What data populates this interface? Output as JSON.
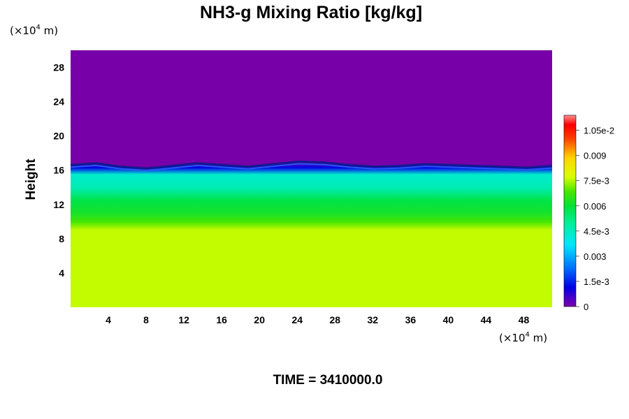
{
  "chart_data": {
    "type": "heatmap",
    "title": "NH3-g Mixing Ratio [kg/kg]",
    "ylabel": "Height",
    "x_unit_prefix": "(×10",
    "x_unit_exp": "4",
    "x_unit_suffix": " m)",
    "y_unit_prefix": "(×10",
    "y_unit_exp": "4",
    "y_unit_suffix": " m)",
    "xlim": [
      0,
      51
    ],
    "ylim": [
      0,
      30
    ],
    "x_ticks": [
      4,
      8,
      12,
      16,
      20,
      24,
      28,
      32,
      36,
      40,
      44,
      48
    ],
    "x_tick_labels": [
      "4",
      "8",
      "12",
      "16",
      "20",
      "24",
      "28",
      "32",
      "36",
      "40",
      "44",
      "48"
    ],
    "y_ticks": [
      4,
      8,
      12,
      16,
      20,
      24,
      28
    ],
    "y_tick_labels": [
      "4",
      "8",
      "12",
      "16",
      "20",
      "24",
      "28"
    ],
    "colorbar": {
      "min": 0,
      "max": 0.0114,
      "tick_values": [
        0,
        0.0015,
        0.003,
        0.0045,
        0.006,
        0.0075,
        0.009,
        0.0105
      ],
      "tick_labels": [
        "0",
        "1.5e-3",
        "0.003",
        "4.5e-3",
        "0.006",
        "7.5e-3",
        "0.009",
        "1.05e-2"
      ]
    },
    "field_description_profile": [
      {
        "height": 0,
        "value": 0.0076
      },
      {
        "height": 9,
        "value": 0.0076
      },
      {
        "height": 10,
        "value": 0.0068
      },
      {
        "height": 11,
        "value": 0.0062
      },
      {
        "height": 12.5,
        "value": 0.0058
      },
      {
        "height": 14,
        "value": 0.0046
      },
      {
        "height": 15.5,
        "value": 0.0043
      },
      {
        "height": 16.3,
        "value": 0.0012
      },
      {
        "height": 17,
        "value": 0.0
      },
      {
        "height": 30,
        "value": 0.0
      }
    ],
    "interface_height": [
      16.6,
      16.8,
      16.4,
      16.2,
      16.5,
      16.8,
      16.6,
      16.4,
      16.7,
      17.0,
      16.9,
      16.6,
      16.4,
      16.5,
      16.7,
      16.6,
      16.5,
      16.4,
      16.3,
      16.5
    ]
  },
  "time_label": "TIME = 3410000.0"
}
